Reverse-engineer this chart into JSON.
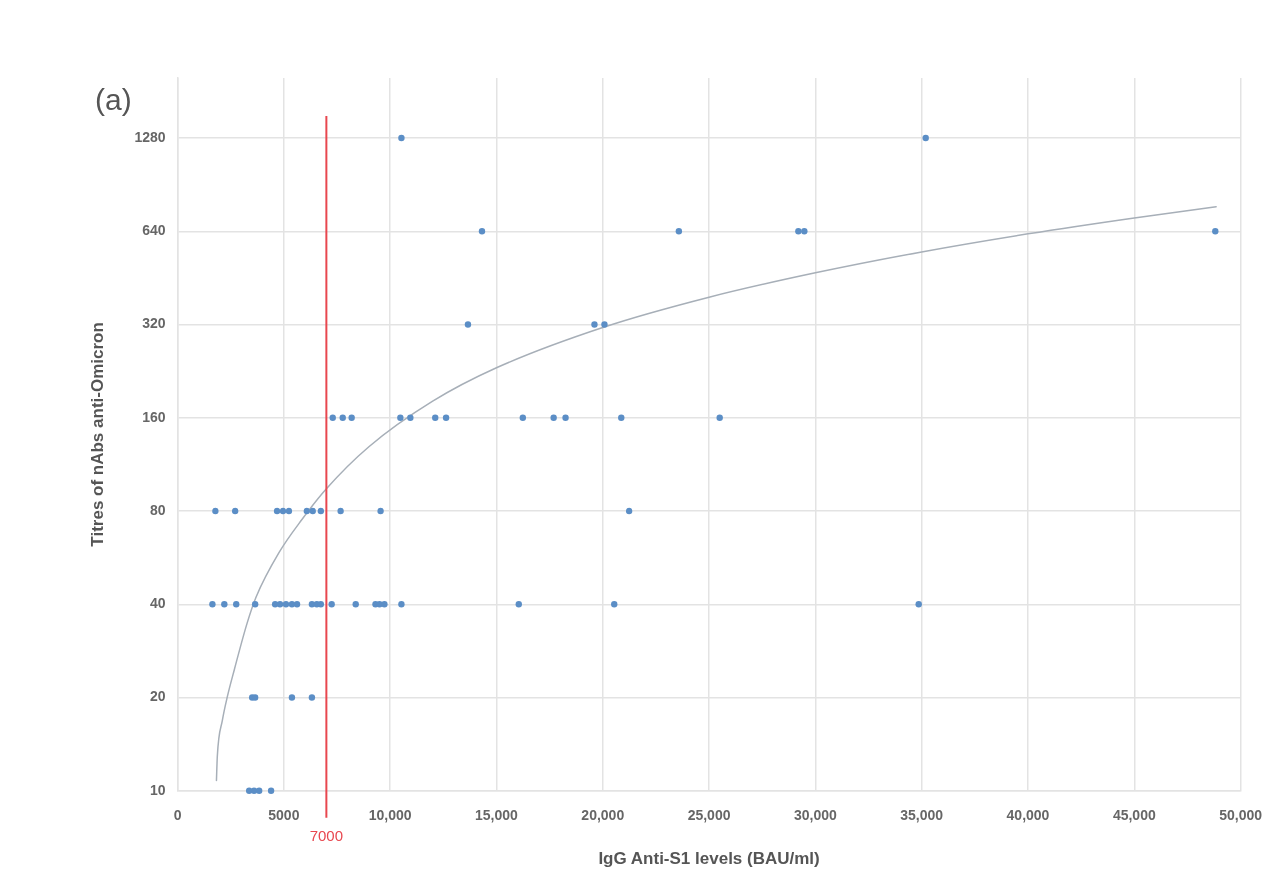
{
  "chart_data": {
    "type": "scatter",
    "title": "(a)",
    "xlabel": "IgG Anti-S1 levels (BAU/ml)",
    "ylabel": "Titres of nAbs anti-Omicron",
    "series": [
      {
        "type": "scatter",
        "color": "#5b8ec6",
        "x": [
          10530,
          35190,
          14320,
          23580,
          29200,
          29480,
          48810,
          13660,
          19610,
          20080,
          7300,
          7770,
          8190,
          10480,
          10950,
          12120,
          12630,
          16240,
          17690,
          18250,
          20870,
          25500,
          1780,
          2710,
          4680,
          4960,
          5240,
          6080,
          6360,
          6740,
          7670,
          9550,
          21240,
          1640,
          2200,
          2760,
          3650,
          4590,
          4820,
          5100,
          5380,
          5620,
          6320,
          6550,
          6740,
          7250,
          8380,
          9310,
          9500,
          9730,
          10530,
          16050,
          20540,
          34860,
          3510,
          3650,
          5380,
          6320,
          3370,
          3600,
          3840,
          4400
        ],
        "values": [
          1280,
          1280,
          640,
          640,
          640,
          640,
          640,
          320,
          320,
          320,
          160,
          160,
          160,
          160,
          160,
          160,
          160,
          160,
          160,
          160,
          160,
          160,
          80,
          80,
          80,
          80,
          80,
          80,
          80,
          80,
          80,
          80,
          80,
          40,
          40,
          40,
          40,
          40,
          40,
          40,
          40,
          40,
          40,
          40,
          40,
          40,
          40,
          40,
          40,
          40,
          40,
          40,
          40,
          40,
          20,
          20,
          20,
          20,
          10,
          10,
          10,
          10
        ]
      },
      {
        "type": "line",
        "color": "#a7afb8",
        "marker": "none",
        "x": [
          1830,
          1870,
          2110,
          2340,
          2670,
          3280,
          3700,
          4770,
          5850,
          6970,
          9000,
          12000,
          15000,
          20000,
          25000,
          30000,
          35000,
          40000,
          45000,
          48850
        ],
        "values": [
          10.8,
          12.9,
          16.9,
          20.1,
          24.6,
          34.9,
          42.3,
          58.7,
          75.1,
          93.9,
          129,
          181,
          232,
          313,
          392,
          470,
          549,
          628,
          707,
          768
        ]
      }
    ],
    "xlim": [
      0,
      50000
    ],
    "xticks": [
      0,
      5000,
      {
        "value": 10000,
        "label": "10,000"
      },
      {
        "value": 15000,
        "label": "15,000"
      },
      {
        "value": 20000,
        "label": "20,000"
      },
      {
        "value": 25000,
        "label": "25,000"
      },
      {
        "value": 30000,
        "label": "30,000"
      },
      {
        "value": 35000,
        "label": "35,000"
      },
      {
        "value": 40000,
        "label": "40,000"
      },
      {
        "value": 45000,
        "label": "45,000"
      },
      {
        "value": 50000,
        "label": "50,000"
      }
    ],
    "ylim": [
      10,
      2000
    ],
    "yticks": [
      10,
      20,
      40,
      80,
      160,
      320,
      640,
      1280
    ],
    "log": "y",
    "grid": true,
    "marker": "circle",
    "ref_lines": [
      {
        "axis": "x",
        "value": 7000,
        "label": "7000",
        "color": "#e8474f"
      }
    ]
  }
}
